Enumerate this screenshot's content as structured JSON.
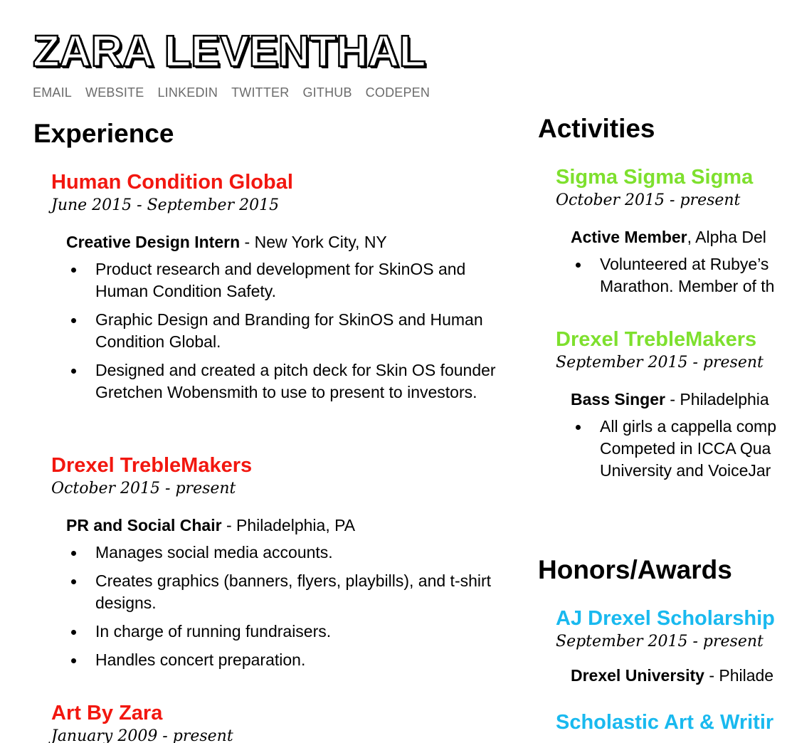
{
  "header": {
    "name": "ZARA LEVENTHAL",
    "links": [
      "EMAIL",
      "WEBSITE",
      "LINKEDIN",
      "TWITTER",
      "GITHUB",
      "CODEPEN"
    ]
  },
  "experience": {
    "title": "Experience",
    "entries": [
      {
        "org": "Human Condition Global",
        "date": "June 2015 - September 2015",
        "role": "Creative Design Intern",
        "location": " - New York City, NY",
        "bullets": [
          "Product research and development for SkinOS and Human Condition Safety.",
          "Graphic Design and Branding for SkinOS and Human Condition Global.",
          "Designed and created a pitch deck for Skin OS founder Gretchen Wobensmith to use to present to investors."
        ]
      },
      {
        "org": "Drexel TrebleMakers",
        "date": "October 2015 - present",
        "role": "PR and Social Chair",
        "location": " - Philadelphia, PA",
        "bullets": [
          "Manages social media accounts.",
          "Creates graphics (banners, flyers, playbills), and t-shirt designs.",
          "In charge of running fundraisers.",
          "Handles concert preparation."
        ]
      },
      {
        "org": "Art By Zara",
        "date": "January 2009 - present"
      }
    ]
  },
  "activities": {
    "title": "Activities",
    "entries": [
      {
        "org": "Sigma Sigma Sigma",
        "date": "October 2015 - present",
        "role": "Active Member",
        "location": ", Alpha Del",
        "bullets": [
          "Volunteered at Rubye’s Marathon. Member of th"
        ]
      },
      {
        "org": "Drexel TrebleMakers",
        "date": "September 2015 - present",
        "role": "Bass Singer",
        "location": " - Philadelphia",
        "bullets": [
          "All girls a cappella comp Competed in ICCA Qua University and VoiceJar"
        ]
      }
    ]
  },
  "honors": {
    "title": "Honors/Awards",
    "entries": [
      {
        "org": "AJ Drexel Scholarship",
        "date": "September 2015 - present",
        "role": "Drexel University",
        "location": " - Philade"
      },
      {
        "org": "Scholastic Art & Writir"
      }
    ]
  },
  "colors": {
    "experience_org": "#f2170f",
    "activities_org": "#7ee02e",
    "honors_org": "#19b9ef",
    "contact_link": "#6b6b6b"
  }
}
